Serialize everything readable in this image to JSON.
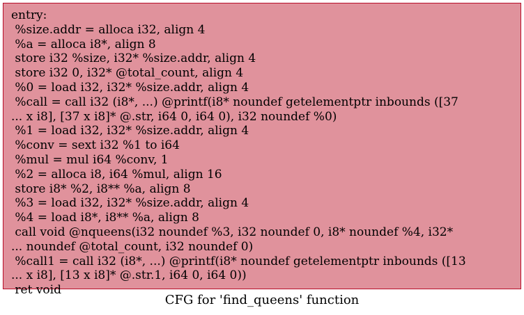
{
  "node": {
    "lines": [
      "entry:",
      " %size.addr = alloca i32, align 4",
      " %a = alloca i8*, align 8",
      " store i32 %size, i32* %size.addr, align 4",
      " store i32 0, i32* @total_count, align 4",
      " %0 = load i32, i32* %size.addr, align 4",
      " %call = call i32 (i8*, ...) @printf(i8* noundef getelementptr inbounds ([37",
      "... x i8], [37 x i8]* @.str, i64 0, i64 0), i32 noundef %0)",
      " %1 = load i32, i32* %size.addr, align 4",
      " %conv = sext i32 %1 to i64",
      " %mul = mul i64 %conv, 1",
      " %2 = alloca i8, i64 %mul, align 16",
      " store i8* %2, i8** %a, align 8",
      " %3 = load i32, i32* %size.addr, align 4",
      " %4 = load i8*, i8** %a, align 8",
      " call void @nqueens(i32 noundef %3, i32 noundef 0, i8* noundef %4, i32*",
      "... noundef @total_count, i32 noundef 0)",
      " %call1 = call i32 (i8*, ...) @printf(i8* noundef getelementptr inbounds ([13",
      "... x i8], [13 x i8]* @.str.1, i64 0, i64 0))",
      " ret void"
    ],
    "fill_color": "#e0929c",
    "border_color": "#b70d28"
  },
  "caption": "CFG for 'find_queens' function"
}
